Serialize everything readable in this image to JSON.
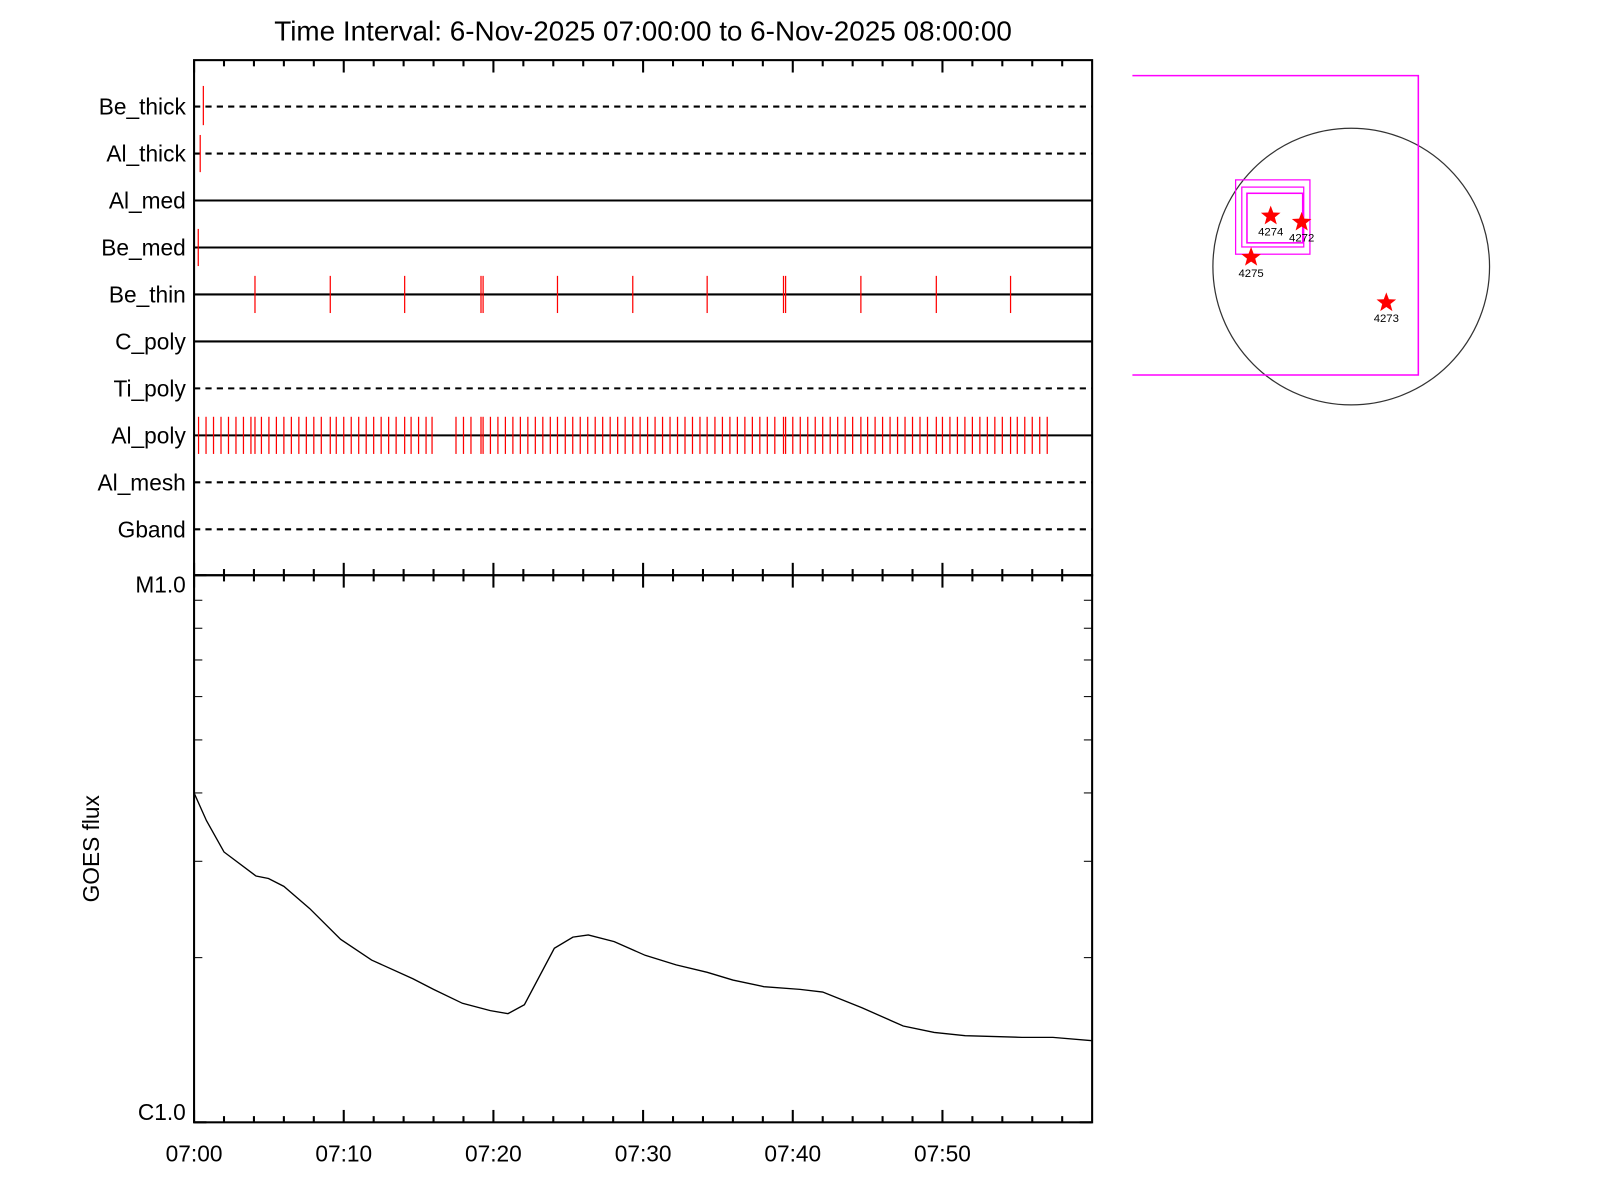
{
  "chart_data": [
    {
      "type": "events",
      "title": "Time Interval:  6-Nov-2025 07:00:00 to  6-Nov-2025 08:00:00",
      "xlim": [
        0,
        60
      ],
      "xticks": [
        0,
        10,
        20,
        30,
        40,
        50
      ],
      "xminorticks": [
        2,
        4,
        6,
        8,
        12,
        14,
        16,
        18,
        22,
        24,
        26,
        28,
        32,
        34,
        36,
        38,
        42,
        44,
        46,
        48,
        52,
        54,
        56,
        58
      ],
      "color": "#ff0000",
      "rows": [
        {
          "name": "Be_thick",
          "style": "dashed",
          "events": [
            0.62
          ]
        },
        {
          "name": "Al_thick",
          "style": "dashed",
          "events": [
            0.41
          ]
        },
        {
          "name": "Al_med",
          "style": "solid",
          "events": []
        },
        {
          "name": "Be_med",
          "style": "solid",
          "events": [
            0.28
          ]
        },
        {
          "name": "Be_thin",
          "style": "solid",
          "events": [
            4.07,
            9.1,
            14.07,
            19.17,
            19.31,
            24.28,
            29.31,
            34.28,
            39.38,
            39.52,
            44.55,
            49.59,
            54.55
          ]
        },
        {
          "name": "C_poly",
          "style": "solid",
          "events": []
        },
        {
          "name": "Ti_poly",
          "style": "dashed",
          "events": []
        },
        {
          "name": "Al_poly",
          "style": "solid",
          "events": [
            0.3,
            0.8,
            1.3,
            1.8,
            2.3,
            2.8,
            3.3,
            3.8,
            4.07,
            4.5,
            5.0,
            5.5,
            6.0,
            6.5,
            7.0,
            7.5,
            8.0,
            8.5,
            9.1,
            9.5,
            10.0,
            10.5,
            11.0,
            11.5,
            12.0,
            12.5,
            13.0,
            13.5,
            14.07,
            14.5,
            15.0,
            15.5,
            15.9,
            17.5,
            18.0,
            18.5,
            19.17,
            19.31,
            19.8,
            20.3,
            20.8,
            21.3,
            21.8,
            22.3,
            22.8,
            23.3,
            23.8,
            24.28,
            24.8,
            25.3,
            25.8,
            26.3,
            26.8,
            27.3,
            27.8,
            28.3,
            28.8,
            29.31,
            29.8,
            30.3,
            30.8,
            31.3,
            31.8,
            32.3,
            32.8,
            33.3,
            33.8,
            34.28,
            34.8,
            35.3,
            35.8,
            36.3,
            36.8,
            37.3,
            37.8,
            38.3,
            38.8,
            39.38,
            39.52,
            40.0,
            40.5,
            41.0,
            41.5,
            42.0,
            42.5,
            43.0,
            43.5,
            44.0,
            44.55,
            45.0,
            45.5,
            46.0,
            46.5,
            47.0,
            47.5,
            48.0,
            48.5,
            49.0,
            49.59,
            50.0,
            50.5,
            51.0,
            51.5,
            52.0,
            52.5,
            53.0,
            53.5,
            54.0,
            54.55,
            55.0,
            55.5,
            56.0,
            56.5,
            57.0
          ]
        },
        {
          "name": "Al_mesh",
          "style": "dashed",
          "events": []
        },
        {
          "name": "Gband",
          "style": "dashed",
          "events": []
        }
      ]
    },
    {
      "type": "line",
      "ylabel": "GOES flux",
      "log_scale": true,
      "xlim": [
        0,
        60
      ],
      "xticks": [
        {
          "value": 0,
          "label": "07:00"
        },
        {
          "value": 10,
          "label": "07:10"
        },
        {
          "value": 20,
          "label": "07:20"
        },
        {
          "value": 30,
          "label": "07:30"
        },
        {
          "value": 40,
          "label": "07:40"
        },
        {
          "value": 50,
          "label": "07:50"
        }
      ],
      "xminorticks": [
        2,
        4,
        6,
        8,
        12,
        14,
        16,
        18,
        22,
        24,
        26,
        28,
        32,
        34,
        36,
        38,
        42,
        44,
        46,
        48,
        52,
        54,
        56,
        58
      ],
      "ylim": [
        1e-06,
        1e-05
      ],
      "yticks": [
        {
          "value": 1e-06,
          "label": "C1.0"
        },
        {
          "value": 1e-05,
          "label": "M1.0"
        }
      ],
      "yminorticks": [
        2e-06,
        3e-06,
        4e-06,
        5e-06,
        6e-06,
        7e-06,
        8e-06,
        9e-06
      ],
      "color": "#000000",
      "x": [
        0,
        0.83,
        2.0,
        4.14,
        4.97,
        6.0,
        7.72,
        9.79,
        11.86,
        14.62,
        16.0,
        17.93,
        19.79,
        20.97,
        22.07,
        24.07,
        25.31,
        26.34,
        28.07,
        30.14,
        32.21,
        34.28,
        36.0,
        38.07,
        40.48,
        42.0,
        44.62,
        47.38,
        49.45,
        51.52,
        55.31,
        57.38,
        60
      ],
      "values": [
        4e-06,
        3.56e-06,
        3.12e-06,
        2.82e-06,
        2.79e-06,
        2.7e-06,
        2.46e-06,
        2.16e-06,
        1.98e-06,
        1.83e-06,
        1.75e-06,
        1.65e-06,
        1.6e-06,
        1.58e-06,
        1.64e-06,
        2.08e-06,
        2.18e-06,
        2.2e-06,
        2.14e-06,
        2.02e-06,
        1.94e-06,
        1.88e-06,
        1.82e-06,
        1.77e-06,
        1.75e-06,
        1.73e-06,
        1.62e-06,
        1.5e-06,
        1.46e-06,
        1.44e-06,
        1.43e-06,
        1.43e-06,
        1.41e-06
      ]
    },
    {
      "type": "map",
      "regions": [
        {
          "label": "4274"
        },
        {
          "label": "4272"
        },
        {
          "label": "4275"
        },
        {
          "label": "4273"
        }
      ]
    }
  ]
}
